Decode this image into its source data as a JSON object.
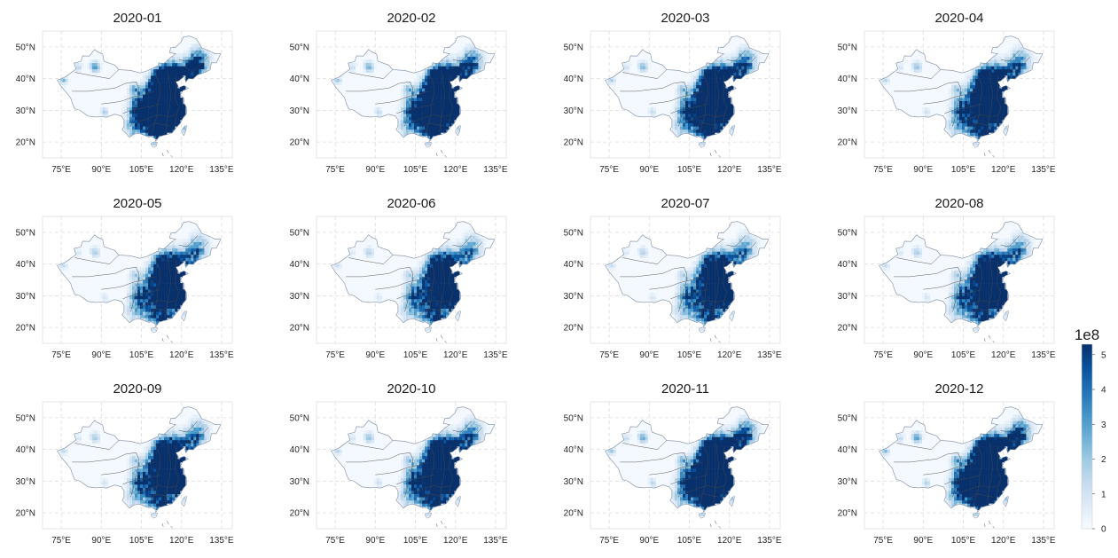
{
  "chart_data": {
    "type": "heatmap",
    "panels": [
      {
        "title": "2020-01",
        "intensity": 1.0
      },
      {
        "title": "2020-02",
        "intensity": 0.72
      },
      {
        "title": "2020-03",
        "intensity": 0.62
      },
      {
        "title": "2020-04",
        "intensity": 0.5
      },
      {
        "title": "2020-05",
        "intensity": 0.36
      },
      {
        "title": "2020-06",
        "intensity": 0.3
      },
      {
        "title": "2020-07",
        "intensity": 0.3
      },
      {
        "title": "2020-08",
        "intensity": 0.36
      },
      {
        "title": "2020-09",
        "intensity": 0.4
      },
      {
        "title": "2020-10",
        "intensity": 0.52
      },
      {
        "title": "2020-11",
        "intensity": 0.78
      },
      {
        "title": "2020-12",
        "intensity": 0.92
      }
    ],
    "x_ticks": [
      "75°E",
      "90°E",
      "105°E",
      "120°E",
      "135°E"
    ],
    "x_tick_values": [
      75,
      90,
      105,
      120,
      135
    ],
    "xlim": [
      68,
      139
    ],
    "y_ticks": [
      "20°N",
      "30°N",
      "40°N",
      "50°N"
    ],
    "y_tick_values": [
      20,
      30,
      40,
      50
    ],
    "ylim": [
      15,
      55
    ],
    "grid": true,
    "colorbar": {
      "ticks": [
        "0",
        "1",
        "2",
        "3",
        "4",
        "5"
      ],
      "tick_values": [
        0,
        1,
        2,
        3,
        4,
        5
      ],
      "range": [
        0,
        5.3
      ],
      "multiplier_label": "1e8",
      "colormap": [
        "#f7fbff",
        "#deebf7",
        "#c6dbef",
        "#9ecae1",
        "#6baed6",
        "#4292c6",
        "#2171b5",
        "#08519c",
        "#08306b"
      ]
    }
  }
}
